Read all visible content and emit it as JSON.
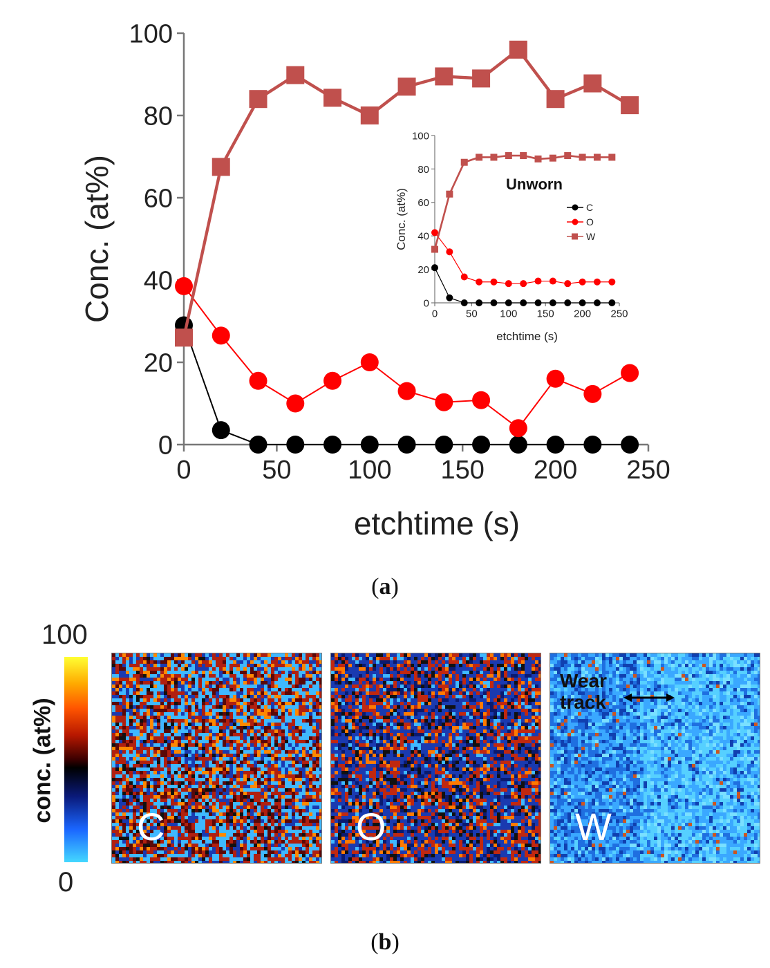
{
  "chart_data": [
    {
      "type": "line",
      "panel": "a",
      "title": "",
      "xlabel": "etchtime (s)",
      "ylabel": "Conc. (at%)",
      "xlim": [
        0,
        250
      ],
      "ylim": [
        0,
        100
      ],
      "x_ticks": [
        "0",
        "50",
        "100",
        "150",
        "200",
        "250"
      ],
      "y_ticks": [
        "0",
        "20",
        "40",
        "60",
        "80",
        "100"
      ],
      "x": [
        0,
        20,
        40,
        60,
        80,
        100,
        120,
        140,
        160,
        180,
        200,
        220,
        240
      ],
      "series": [
        {
          "name": "C",
          "color": "#000000",
          "marker": "circle",
          "values": [
            29,
            3.5,
            0,
            0,
            0,
            0,
            0,
            0,
            0,
            0,
            0,
            0,
            0
          ]
        },
        {
          "name": "O",
          "color": "#ff0000",
          "marker": "circle",
          "values": [
            38.5,
            26.5,
            15.5,
            10,
            15.5,
            20,
            13,
            10.3,
            10.8,
            4,
            16,
            12.3,
            17.4
          ]
        },
        {
          "name": "W",
          "color": "#c0504d",
          "marker": "square",
          "values": [
            26,
            67.5,
            84,
            89.8,
            84.3,
            80,
            87,
            89.5,
            89,
            96,
            84,
            87.8,
            82.5
          ]
        }
      ]
    },
    {
      "type": "line",
      "panel": "a-inset",
      "title": "Unworn",
      "xlabel": "etchtime (s)",
      "ylabel": "Conc. (at%)",
      "xlim": [
        0,
        250
      ],
      "ylim": [
        0,
        100
      ],
      "x_ticks": [
        "0",
        "50",
        "100",
        "150",
        "200",
        "250"
      ],
      "y_ticks": [
        "0",
        "20",
        "40",
        "60",
        "80",
        "100"
      ],
      "legend_position": "right",
      "x": [
        0,
        20,
        40,
        60,
        80,
        100,
        120,
        140,
        160,
        180,
        200,
        220,
        240
      ],
      "series": [
        {
          "name": "C",
          "color": "#000000",
          "marker": "circle",
          "values": [
            21,
            3,
            0,
            0,
            0,
            0,
            0,
            0,
            0,
            0,
            0,
            0,
            0
          ]
        },
        {
          "name": "O",
          "color": "#ff0000",
          "marker": "circle",
          "values": [
            42,
            30.5,
            15.5,
            12.5,
            12.5,
            11.5,
            11.5,
            13,
            13,
            11.5,
            12.5,
            12.5,
            12.5
          ]
        },
        {
          "name": "W",
          "color": "#c0504d",
          "marker": "square",
          "values": [
            32,
            65,
            84,
            87,
            87,
            88,
            88,
            86,
            86.5,
            88,
            87,
            87,
            87
          ]
        }
      ]
    }
  ],
  "captions": {
    "a": "a",
    "b": "b"
  },
  "maps": {
    "colorbar": {
      "max_label": "100",
      "min_label": "0",
      "title": "conc. (at%)"
    },
    "panels": [
      {
        "letter": "C"
      },
      {
        "letter": "O"
      },
      {
        "letter": "W",
        "annotation_line1": "Wear",
        "annotation_line2": "track"
      }
    ]
  }
}
